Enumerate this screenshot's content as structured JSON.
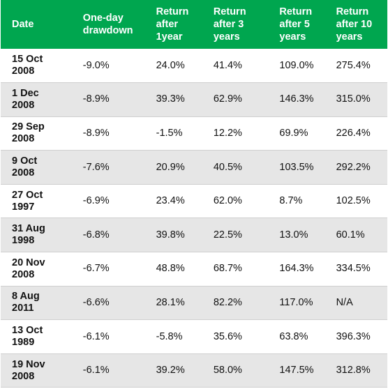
{
  "table": {
    "headers": [
      "Date",
      "One-day drawdown",
      "Return after 1year",
      "Return after 3 years",
      "Return after 5 years",
      "Return after 10 years"
    ],
    "rows": [
      [
        "15 Oct 2008",
        "-9.0%",
        "24.0%",
        "41.4%",
        "109.0%",
        "275.4%"
      ],
      [
        "1 Dec 2008",
        "-8.9%",
        "39.3%",
        "62.9%",
        "146.3%",
        "315.0%"
      ],
      [
        "29 Sep 2008",
        "-8.9%",
        "-1.5%",
        "12.2%",
        "69.9%",
        "226.4%"
      ],
      [
        "9 Oct 2008",
        "-7.6%",
        "20.9%",
        "40.5%",
        "103.5%",
        "292.2%"
      ],
      [
        "27 Oct 1997",
        "-6.9%",
        "23.4%",
        "62.0%",
        "8.7%",
        "102.5%"
      ],
      [
        "31 Aug 1998",
        "-6.8%",
        "39.8%",
        "22.5%",
        "13.0%",
        "60.1%"
      ],
      [
        "20 Nov 2008",
        "-6.7%",
        "48.8%",
        "68.7%",
        "164.3%",
        "334.5%"
      ],
      [
        "8 Aug 2011",
        "-6.6%",
        "28.1%",
        "82.2%",
        "117.0%",
        "N/A"
      ],
      [
        "13 Oct 1989",
        "-6.1%",
        "-5.8%",
        "35.6%",
        "63.8%",
        "396.3%"
      ],
      [
        "19 Nov 2008",
        "-6.1%",
        "39.2%",
        "58.0%",
        "147.5%",
        "312.8%"
      ]
    ]
  },
  "colors": {
    "header_background": "#00a64f",
    "header_text": "#ffffff",
    "stripe": "#e6e6e6"
  }
}
